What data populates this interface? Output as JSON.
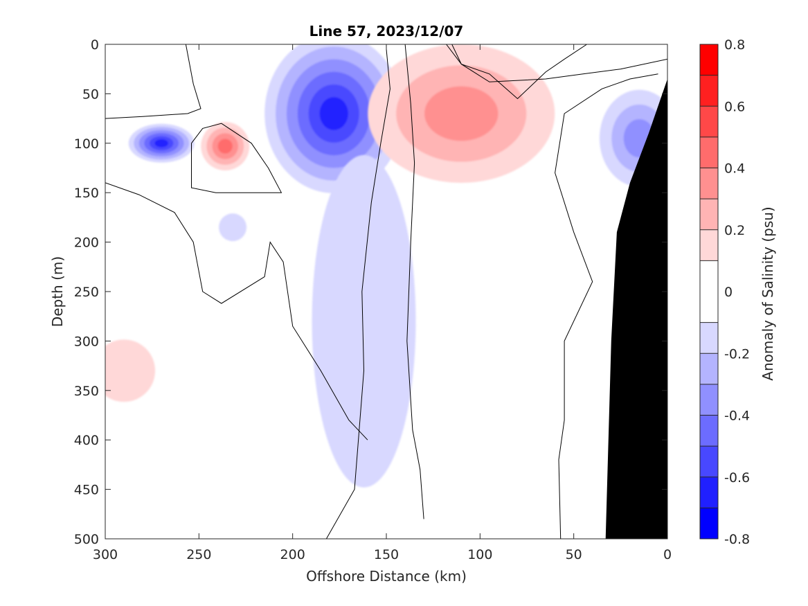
{
  "chart_data": {
    "type": "heatmap",
    "title": "Line 57, 2023/12/07",
    "xlabel": "Offshore Distance (km)",
    "ylabel": "Depth (m)",
    "xlim": [
      300,
      0
    ],
    "ylim": [
      0,
      500
    ],
    "x_reversed": true,
    "y_reversed": true,
    "x_ticks": [
      300,
      250,
      200,
      150,
      100,
      50,
      0
    ],
    "y_ticks": [
      0,
      50,
      100,
      150,
      200,
      250,
      300,
      350,
      400,
      450,
      500
    ],
    "colorbar": {
      "label": "Anomaly of Salinity (psu)",
      "range": [
        -0.8,
        0.8
      ],
      "levels": [
        -0.8,
        -0.7,
        -0.6,
        -0.5,
        -0.4,
        -0.3,
        -0.2,
        -0.1,
        0.1,
        0.2,
        0.3,
        0.4,
        0.5,
        0.6,
        0.7,
        0.8
      ],
      "tick_values": [
        -0.8,
        -0.6,
        -0.4,
        -0.2,
        0,
        0.2,
        0.4,
        0.6,
        0.8
      ],
      "tick_labels": [
        "-0.8",
        "-0.6",
        "-0.4",
        "-0.2",
        "0",
        "0.2",
        "0.4",
        "0.6",
        "0.8"
      ],
      "colors": [
        "#0000ff",
        "#2020ff",
        "#4848ff",
        "#6c6cff",
        "#9090ff",
        "#b4b4ff",
        "#d8d8ff",
        "#ffffff",
        "#ffd8d8",
        "#ffb4b4",
        "#ff9090",
        "#ff6c6c",
        "#ff4848",
        "#ff2020",
        "#ff0000"
      ]
    },
    "features": [
      {
        "kind": "anomaly",
        "sign": "negative",
        "center_km": 270,
        "center_depth_m": 100,
        "peak_psu": -0.6
      },
      {
        "kind": "anomaly",
        "sign": "positive",
        "center_km": 236,
        "center_depth_m": 103,
        "peak_psu": 0.4
      },
      {
        "kind": "anomaly",
        "sign": "negative",
        "center_km": 178,
        "center_depth_m": 70,
        "peak_psu": -0.6
      },
      {
        "kind": "anomaly",
        "sign": "positive",
        "center_km": 110,
        "center_depth_m": 70,
        "peak_psu": 0.3
      },
      {
        "kind": "anomaly",
        "sign": "negative",
        "center_km": 15,
        "center_depth_m": 95,
        "peak_psu": -0.3
      },
      {
        "kind": "anomaly",
        "sign": "positive",
        "center_km": 290,
        "center_depth_m": 330,
        "peak_psu": 0.1
      },
      {
        "kind": "anomaly",
        "sign": "negative",
        "center_km": 232,
        "center_depth_m": 185,
        "peak_psu": -0.1
      },
      {
        "kind": "anomaly",
        "sign": "negative",
        "center_km": 162,
        "center_depth_m": 280,
        "peak_psu": -0.1
      }
    ],
    "bathymetry_profile": [
      [
        0,
        35
      ],
      [
        10,
        90
      ],
      [
        20,
        140
      ],
      [
        27,
        190
      ],
      [
        30,
        300
      ],
      [
        33,
        500
      ]
    ]
  }
}
